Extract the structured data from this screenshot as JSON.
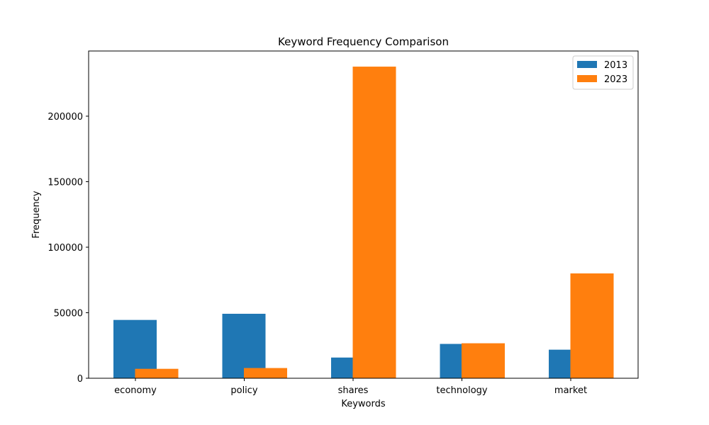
{
  "chart_data": {
    "type": "bar",
    "title": "Keyword Frequency Comparison",
    "xlabel": "Keywords",
    "ylabel": "Frequency",
    "categories": [
      "economy",
      "policy",
      "shares",
      "technology",
      "market"
    ],
    "series": [
      {
        "name": "2013",
        "color": "#1f77b4",
        "values": [
          44500,
          49200,
          15800,
          26200,
          21800
        ]
      },
      {
        "name": "2023",
        "color": "#ff7f0e",
        "values": [
          7200,
          7800,
          237800,
          26700,
          80000
        ]
      }
    ],
    "ylim": [
      0,
      250000
    ],
    "yticks": [
      0,
      50000,
      100000,
      150000,
      200000
    ],
    "ytick_labels": [
      "0",
      "50000",
      "100000",
      "150000",
      "200000"
    ],
    "grid": false,
    "legend_position": "top-right"
  }
}
